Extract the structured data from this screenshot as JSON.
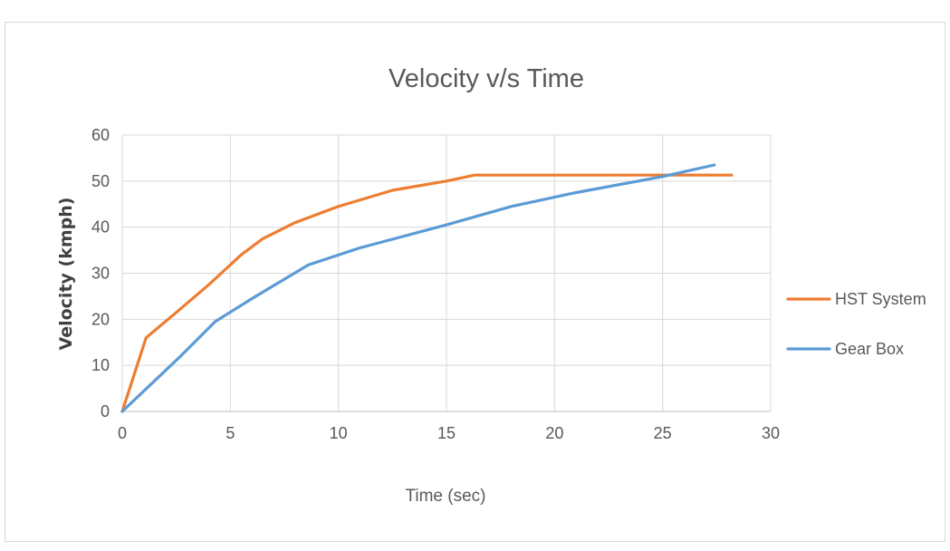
{
  "chart_data": {
    "type": "line",
    "title": "Velocity v/s Time",
    "xlabel": "Time (sec)",
    "ylabel": "Velocity (kmph)",
    "xlim": [
      0,
      30
    ],
    "ylim": [
      0,
      60
    ],
    "x_ticks": [
      0,
      5,
      10,
      15,
      20,
      25,
      30
    ],
    "y_ticks": [
      0,
      10,
      20,
      30,
      40,
      50,
      60
    ],
    "grid": true,
    "legend_position": "right",
    "series": [
      {
        "name": "HST System",
        "color": "#ED7D31",
        "points": [
          [
            0,
            0
          ],
          [
            1.1,
            16
          ],
          [
            2.5,
            21.5
          ],
          [
            4,
            27.5
          ],
          [
            5.5,
            34
          ],
          [
            6.5,
            37.5
          ],
          [
            8,
            41
          ],
          [
            10,
            44.5
          ],
          [
            12.5,
            48
          ],
          [
            15,
            50
          ],
          [
            16.3,
            51.3
          ],
          [
            20,
            51.3
          ],
          [
            25,
            51.3
          ],
          [
            28.2,
            51.3
          ]
        ]
      },
      {
        "name": "Gear Box",
        "color": "#5B9BD5",
        "points": [
          [
            0,
            0
          ],
          [
            1.8,
            8
          ],
          [
            2.7,
            12
          ],
          [
            4.3,
            19.5
          ],
          [
            6,
            24.5
          ],
          [
            8.6,
            31.8
          ],
          [
            11,
            35.5
          ],
          [
            15,
            40.5
          ],
          [
            18,
            44.5
          ],
          [
            21,
            47.5
          ],
          [
            25,
            51
          ],
          [
            27.4,
            53.5
          ]
        ]
      }
    ]
  }
}
